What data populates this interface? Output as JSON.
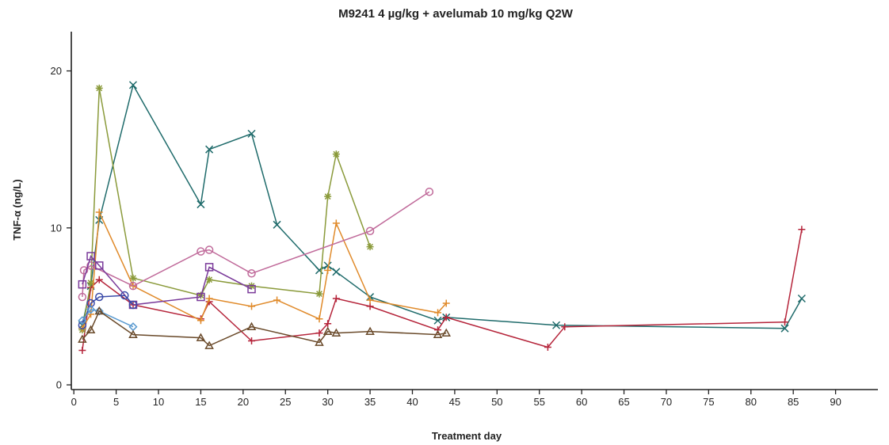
{
  "chart_data": {
    "type": "line",
    "title": "M9241 4 µg/kg + avelumab 10 mg/kg Q2W",
    "xlabel": "Treatment day",
    "ylabel": "TNF-α (ng/L)",
    "xlim": [
      -0.3,
      95
    ],
    "ylim": [
      -0.3,
      22.5
    ],
    "xticks": [
      0,
      5,
      10,
      15,
      20,
      25,
      30,
      35,
      40,
      45,
      50,
      55,
      60,
      65,
      70,
      75,
      80,
      85,
      90
    ],
    "yticks": [
      0,
      10,
      20
    ],
    "grid": false,
    "legend": "none",
    "series": [
      {
        "color": "#1f6b6b",
        "marker": "x",
        "points": [
          [
            1,
            3.8
          ],
          [
            2,
            6.3
          ],
          [
            3,
            10.5
          ],
          [
            7,
            19.1
          ],
          [
            15,
            11.5
          ],
          [
            16,
            15.0
          ],
          [
            21,
            16.0
          ],
          [
            24,
            10.2
          ],
          [
            29,
            7.3
          ],
          [
            30,
            7.6
          ],
          [
            31,
            7.2
          ],
          [
            35,
            5.6
          ],
          [
            43,
            4.1
          ],
          [
            44,
            4.3
          ],
          [
            57,
            3.8
          ],
          [
            84,
            3.6
          ],
          [
            86,
            5.5
          ]
        ]
      },
      {
        "color": "#b5243a",
        "marker": "plus",
        "points": [
          [
            1,
            2.2
          ],
          [
            2,
            6.2
          ],
          [
            3,
            6.7
          ],
          [
            7,
            5.1
          ],
          [
            15,
            4.2
          ],
          [
            16,
            5.3
          ],
          [
            21,
            2.8
          ],
          [
            29,
            3.3
          ],
          [
            30,
            3.9
          ],
          [
            31,
            5.5
          ],
          [
            35,
            5.0
          ],
          [
            43,
            3.5
          ],
          [
            44,
            4.3
          ],
          [
            56,
            2.4
          ],
          [
            58,
            3.7
          ],
          [
            84,
            4.0
          ],
          [
            86,
            9.9
          ]
        ]
      },
      {
        "color": "#8a9a3a",
        "marker": "asterisk",
        "points": [
          [
            1,
            3.5
          ],
          [
            2,
            6.5
          ],
          [
            3,
            18.9
          ],
          [
            7,
            6.8
          ],
          [
            15,
            5.7
          ],
          [
            16,
            6.7
          ],
          [
            21,
            6.3
          ],
          [
            29,
            5.8
          ],
          [
            30,
            12.0
          ],
          [
            31,
            14.7
          ],
          [
            35,
            8.8
          ]
        ]
      },
      {
        "color": "#e08a2a",
        "marker": "plus",
        "points": [
          [
            1,
            3.6
          ],
          [
            2,
            4.5
          ],
          [
            3,
            11.0
          ],
          [
            7,
            6.3
          ],
          [
            15,
            4.1
          ],
          [
            16,
            5.5
          ],
          [
            21,
            5.0
          ],
          [
            24,
            5.4
          ],
          [
            29,
            4.2
          ],
          [
            30,
            7.3
          ],
          [
            31,
            10.3
          ],
          [
            35,
            5.4
          ],
          [
            43,
            4.6
          ],
          [
            44,
            5.2
          ]
        ]
      },
      {
        "color": "#c06a9a",
        "marker": "circle",
        "points": [
          [
            1,
            5.6
          ],
          [
            1.2,
            7.3
          ],
          [
            2,
            7.6
          ],
          [
            7,
            6.3
          ],
          [
            15,
            8.5
          ],
          [
            16,
            8.6
          ],
          [
            21,
            7.1
          ],
          [
            35,
            9.8
          ],
          [
            42,
            12.3
          ]
        ]
      },
      {
        "color": "#7a3a9a",
        "marker": "square",
        "points": [
          [
            1,
            6.4
          ],
          [
            2,
            8.2
          ],
          [
            3,
            7.6
          ],
          [
            7,
            5.1
          ],
          [
            15,
            5.6
          ],
          [
            16,
            7.5
          ],
          [
            21,
            6.1
          ]
        ]
      },
      {
        "color": "#3a4aa8",
        "marker": "circle",
        "points": [
          [
            1,
            3.8
          ],
          [
            2,
            5.2
          ],
          [
            3,
            5.6
          ],
          [
            6,
            5.7
          ],
          [
            7,
            5.1
          ]
        ]
      },
      {
        "color": "#5a9ad0",
        "marker": "diamond",
        "points": [
          [
            1,
            4.1
          ],
          [
            2,
            4.8
          ],
          [
            3,
            4.7
          ],
          [
            7,
            3.7
          ]
        ]
      },
      {
        "color": "#6a4a2a",
        "marker": "triangle",
        "points": [
          [
            1,
            2.9
          ],
          [
            2,
            3.5
          ],
          [
            3,
            4.7
          ],
          [
            7,
            3.2
          ],
          [
            15,
            3.0
          ],
          [
            16,
            2.5
          ],
          [
            21,
            3.7
          ],
          [
            29,
            2.7
          ],
          [
            30,
            3.4
          ],
          [
            31,
            3.3
          ],
          [
            35,
            3.4
          ],
          [
            43,
            3.2
          ],
          [
            44,
            3.3
          ]
        ]
      }
    ]
  }
}
